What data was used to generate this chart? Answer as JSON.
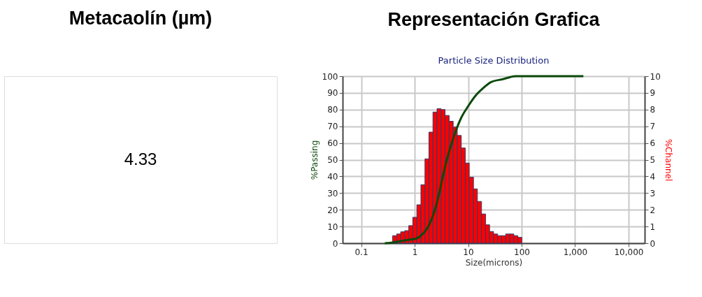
{
  "chart_data": [
    {
      "type": "other",
      "title": "Metacaolín (µm)",
      "annotations": [
        "4.33"
      ]
    },
    {
      "type": "histogram",
      "title": "Representación Grafica",
      "subtitle": "Particle Size Distribution",
      "xlabel": "Size(microns)",
      "ylabel": "%Passing",
      "y2label": "%Channel",
      "log": "x",
      "grid": true,
      "xlim": [
        0.045,
        20000
      ],
      "xticks": [
        0.1,
        1,
        10,
        100,
        {
          "value": 1000,
          "label": "1,000"
        },
        {
          "value": 10000,
          "label": "10,000"
        }
      ],
      "ylim": [
        0,
        100
      ],
      "yticks": [
        0,
        10,
        20,
        30,
        40,
        50,
        60,
        70,
        80,
        90,
        100
      ],
      "y2lim": [
        0,
        10
      ],
      "y2ticks": [
        0,
        1,
        2,
        3,
        4,
        5,
        6,
        7,
        8,
        9,
        10
      ],
      "bins": [
        0.387,
        0.461,
        0.548,
        0.652,
        0.776,
        0.923,
        1.1,
        1.31,
        1.56,
        1.85,
        2.2,
        2.62,
        3.12,
        3.71,
        4.42,
        5.26,
        6.26,
        7.45,
        8.86,
        10.5,
        12.6,
        14.9,
        17.8,
        21.2,
        25.2,
        29.9,
        35.6,
        42.4,
        50.5,
        60.1,
        71.5,
        85.0,
        101
      ],
      "series": [
        {
          "type": "histogram",
          "axis": "y2",
          "color": "#ff0000",
          "values": [
            0.45,
            0.55,
            0.68,
            0.75,
            1.05,
            1.55,
            2.3,
            3.5,
            5.05,
            6.65,
            7.85,
            8.05,
            8.0,
            7.65,
            7.3,
            6.95,
            6.45,
            5.7,
            4.8,
            3.95,
            3.25,
            2.5,
            1.75,
            1.1,
            0.7,
            0.55,
            0.45,
            0.45,
            0.55,
            0.55,
            0.45,
            0.35
          ]
        },
        {
          "type": "line",
          "axis": "y",
          "color": "#0b4a0b",
          "x": [
            0.277,
            0.35,
            0.5,
            0.75,
            1,
            1.32,
            1.8,
            2.2,
            2.7,
            3.3,
            4,
            4.9,
            6,
            7.4,
            10,
            13.5,
            18.3,
            27,
            45,
            77,
            1430
          ],
          "values": [
            0,
            0.2,
            1,
            2,
            2.5,
            4.6,
            10,
            16.4,
            26,
            38.7,
            50,
            59.6,
            68,
            75,
            82,
            88,
            92.3,
            96.5,
            98.2,
            100,
            100
          ]
        }
      ]
    }
  ]
}
